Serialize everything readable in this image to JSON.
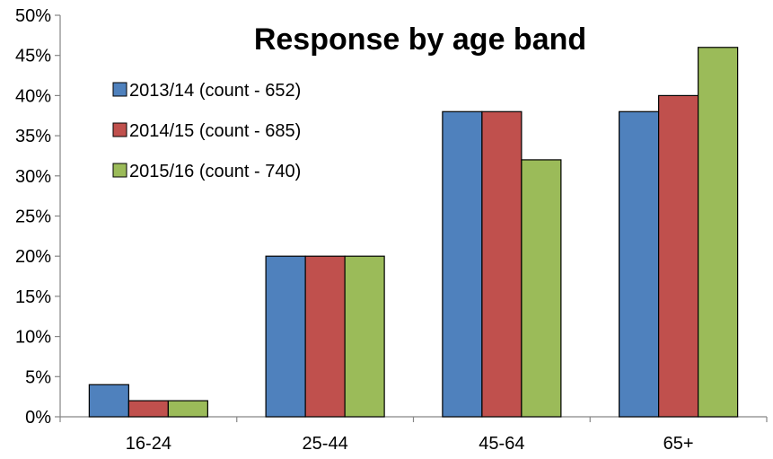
{
  "chart_data": {
    "type": "bar",
    "title": "Response by age band",
    "xlabel": "",
    "ylabel": "",
    "categories": [
      "16-24",
      "25-44",
      "45-64",
      "65+"
    ],
    "series": [
      {
        "name": "2013/14 (count - 652)",
        "color": "#4f81bd",
        "values": [
          4,
          20,
          38,
          38
        ]
      },
      {
        "name": "2014/15 (count - 685)",
        "color": "#c0504d",
        "values": [
          2,
          20,
          38,
          40
        ]
      },
      {
        "name": "2015/16 (count - 740)",
        "color": "#9bbb59",
        "values": [
          2,
          20,
          32,
          46
        ]
      }
    ],
    "ylim": [
      0,
      50
    ],
    "y_ticks": [
      0,
      5,
      10,
      15,
      20,
      25,
      30,
      35,
      40,
      45,
      50
    ],
    "y_tick_labels": [
      "0%",
      "5%",
      "10%",
      "15%",
      "20%",
      "25%",
      "30%",
      "35%",
      "40%",
      "45%",
      "50%"
    ],
    "grid": false,
    "legend_position": "top-left"
  }
}
